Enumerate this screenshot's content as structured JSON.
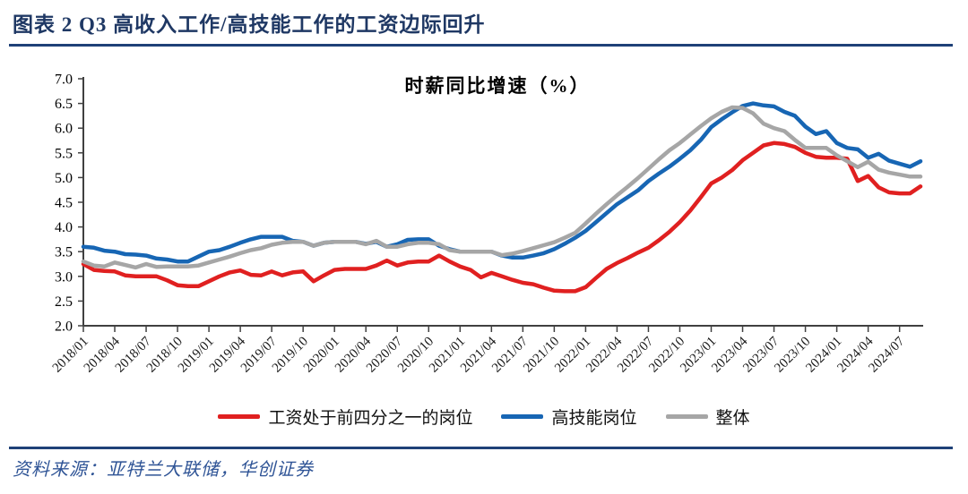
{
  "header": {
    "title": "图表 2  Q3 高收入工作/高技能工作的工资边际回升"
  },
  "footer": {
    "source": "资料来源：亚特兰大联储，华创证券"
  },
  "colors": {
    "header_navy": "#1F3864",
    "rule_navy": "#1F4178",
    "source_navy": "#2F5496",
    "axis": "#404040",
    "series_red": "#E02020",
    "series_blue": "#1766B4",
    "series_gray": "#A6A6A6"
  },
  "chart_data": {
    "type": "line",
    "title": "时薪同比增速（%）",
    "xlabel": "",
    "ylabel": "",
    "x_interval": "monthly",
    "x_start": "2018/01",
    "x_end": "2024/09",
    "x_tick_labels": [
      "2018/01",
      "2018/04",
      "2018/07",
      "2018/10",
      "2019/01",
      "2019/04",
      "2019/07",
      "2019/10",
      "2020/01",
      "2020/04",
      "2020/07",
      "2020/10",
      "2021/01",
      "2021/04",
      "2021/07",
      "2021/10",
      "2022/01",
      "2022/04",
      "2022/07",
      "2022/10",
      "2023/01",
      "2023/04",
      "2023/07",
      "2023/10",
      "2024/01",
      "2024/04",
      "2024/07"
    ],
    "x_tick_every_n_months": 3,
    "ylim": [
      2.0,
      7.0
    ],
    "y_ticks": [
      2.0,
      2.5,
      3.0,
      3.5,
      4.0,
      4.5,
      5.0,
      5.5,
      6.0,
      6.5,
      7.0
    ],
    "grid": false,
    "legend_position": "bottom",
    "series": [
      {
        "name": "工资处于前四分之一的岗位",
        "color": "#E02020",
        "values": [
          3.25,
          3.13,
          3.11,
          3.1,
          3.02,
          3.0,
          3.0,
          3.0,
          2.92,
          2.82,
          2.8,
          2.8,
          2.9,
          3.0,
          3.08,
          3.12,
          3.03,
          3.02,
          3.1,
          3.02,
          3.08,
          3.1,
          2.9,
          3.02,
          3.13,
          3.15,
          3.15,
          3.15,
          3.22,
          3.32,
          3.22,
          3.28,
          3.3,
          3.3,
          3.42,
          3.3,
          3.2,
          3.13,
          2.98,
          3.07,
          3.0,
          2.93,
          2.87,
          2.84,
          2.77,
          2.71,
          2.7,
          2.7,
          2.78,
          2.97,
          3.15,
          3.27,
          3.37,
          3.48,
          3.58,
          3.73,
          3.9,
          4.1,
          4.33,
          4.6,
          4.88,
          5.0,
          5.15,
          5.35,
          5.5,
          5.65,
          5.7,
          5.68,
          5.62,
          5.5,
          5.42,
          5.4,
          5.4,
          5.38,
          4.93,
          5.03,
          4.8,
          4.7,
          4.68,
          4.68,
          4.82
        ]
      },
      {
        "name": "高技能岗位",
        "color": "#1766B4",
        "values": [
          3.6,
          3.58,
          3.52,
          3.5,
          3.45,
          3.44,
          3.42,
          3.36,
          3.34,
          3.3,
          3.3,
          3.4,
          3.5,
          3.53,
          3.6,
          3.68,
          3.75,
          3.8,
          3.8,
          3.8,
          3.72,
          3.7,
          3.62,
          3.68,
          3.7,
          3.7,
          3.7,
          3.66,
          3.7,
          3.6,
          3.65,
          3.74,
          3.75,
          3.75,
          3.62,
          3.55,
          3.5,
          3.5,
          3.5,
          3.5,
          3.42,
          3.38,
          3.38,
          3.42,
          3.47,
          3.55,
          3.66,
          3.78,
          3.92,
          4.1,
          4.28,
          4.46,
          4.6,
          4.74,
          4.93,
          5.08,
          5.22,
          5.38,
          5.55,
          5.76,
          6.02,
          6.18,
          6.32,
          6.45,
          6.5,
          6.46,
          6.44,
          6.33,
          6.25,
          6.03,
          5.88,
          5.94,
          5.7,
          5.6,
          5.57,
          5.4,
          5.48,
          5.34,
          5.28,
          5.22,
          5.33
        ]
      },
      {
        "name": "整体",
        "color": "#A6A6A6",
        "values": [
          3.3,
          3.22,
          3.2,
          3.28,
          3.23,
          3.18,
          3.25,
          3.19,
          3.2,
          3.2,
          3.2,
          3.22,
          3.28,
          3.34,
          3.4,
          3.47,
          3.53,
          3.57,
          3.64,
          3.68,
          3.7,
          3.7,
          3.62,
          3.68,
          3.7,
          3.7,
          3.7,
          3.65,
          3.72,
          3.6,
          3.6,
          3.65,
          3.68,
          3.68,
          3.65,
          3.53,
          3.5,
          3.5,
          3.5,
          3.5,
          3.43,
          3.46,
          3.51,
          3.57,
          3.63,
          3.69,
          3.78,
          3.88,
          4.07,
          4.27,
          4.46,
          4.64,
          4.81,
          4.99,
          5.18,
          5.37,
          5.55,
          5.7,
          5.87,
          6.04,
          6.2,
          6.33,
          6.42,
          6.41,
          6.3,
          6.09,
          6.0,
          5.94,
          5.76,
          5.6,
          5.6,
          5.6,
          5.45,
          5.33,
          5.21,
          5.32,
          5.16,
          5.1,
          5.06,
          5.02,
          5.02
        ]
      }
    ]
  }
}
